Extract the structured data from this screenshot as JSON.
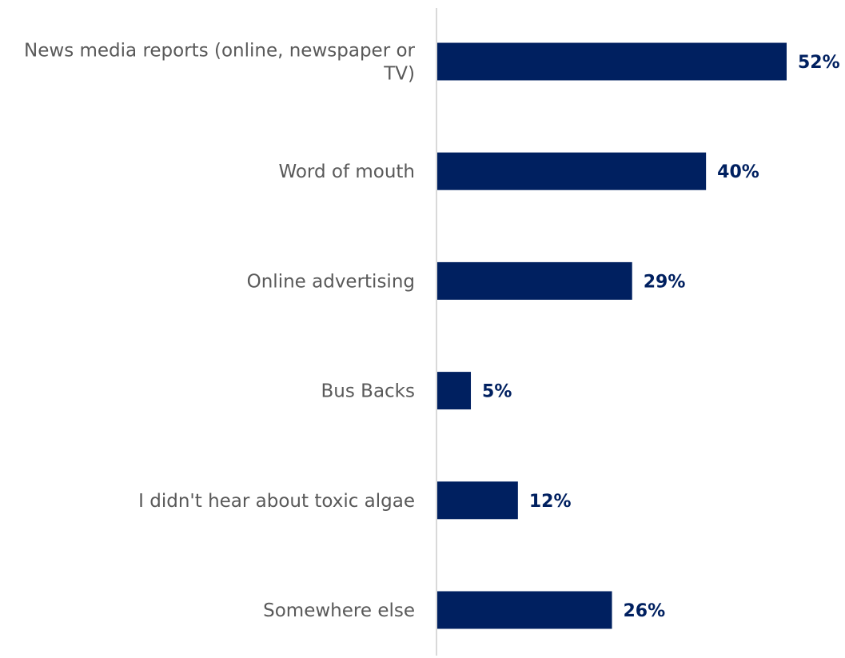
{
  "chart_data": {
    "type": "bar",
    "orientation": "horizontal",
    "categories": [
      "News media reports (online, newspaper or TV)",
      "Word of mouth",
      "Online advertising",
      "Bus Backs",
      "I didn't hear about toxic algae",
      "Somewhere else"
    ],
    "category_label_lines": [
      [
        "News media reports (online, newspaper or",
        "TV)"
      ],
      [
        "Word of mouth"
      ],
      [
        "Online advertising"
      ],
      [
        "Bus Backs"
      ],
      [
        "I didn't hear about toxic algae"
      ],
      [
        "Somewhere else"
      ]
    ],
    "values": [
      52,
      40,
      29,
      5,
      12,
      26
    ],
    "value_labels": [
      "52%",
      "40%",
      "29%",
      "5%",
      "12%",
      "26%"
    ],
    "unit": "%",
    "xlim": [
      0,
      52
    ],
    "grid": false,
    "legend": "none",
    "bar_color": "#002060",
    "axis_color": "#d9d9d9",
    "category_label_color": "#595959",
    "value_label_color": "#002060"
  }
}
